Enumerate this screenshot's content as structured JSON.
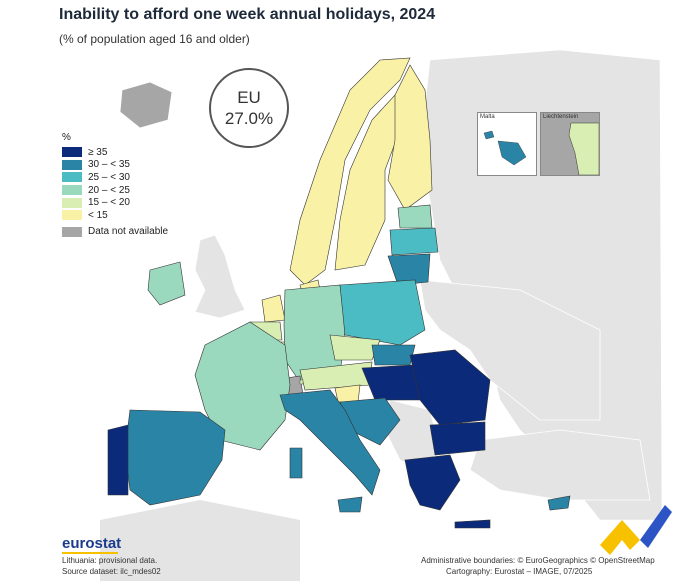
{
  "title": "Inability to afford one week annual holidays, 2024",
  "subtitle": "(% of population aged 16 and older)",
  "eu_label": "EU",
  "eu_value": "27.0%",
  "legend": {
    "unit": "%",
    "items": [
      {
        "label": "≥ 35",
        "color": "#0b2a7a"
      },
      {
        "label": "30 – < 35",
        "color": "#2a84a6"
      },
      {
        "label": "25 – < 30",
        "color": "#4bbcc4"
      },
      {
        "label": "20 – < 25",
        "color": "#9ad9bd"
      },
      {
        "label": "15 – < 20",
        "color": "#d8eeb3"
      },
      {
        "label": "< 15",
        "color": "#f9f1a5"
      }
    ],
    "not_available": {
      "label": "Data not available",
      "color": "#a6a6a6"
    }
  },
  "insets": {
    "malta": "Malta",
    "liechtenstein": "Liechtenstein"
  },
  "footer": {
    "logo": "eurostat",
    "note": "Lithuania: provisional data.",
    "source": "Source dataset: ilc_mdes02",
    "boundaries": "Administrative boundaries: © EuroGeographics © OpenStreetMap",
    "cartography": "Cartography: Eurostat – IMAGE, 07/2025"
  },
  "countries": [
    {
      "name": "Portugal",
      "class": "≥ 35"
    },
    {
      "name": "Spain",
      "class": "30 – < 35"
    },
    {
      "name": "France",
      "class": "20 – < 25"
    },
    {
      "name": "Ireland",
      "class": "20 – < 25"
    },
    {
      "name": "Belgium",
      "class": "15 – < 20"
    },
    {
      "name": "Netherlands",
      "class": "< 15"
    },
    {
      "name": "Luxembourg",
      "class": "< 15"
    },
    {
      "name": "Germany",
      "class": "20 – < 25"
    },
    {
      "name": "Denmark",
      "class": "< 15"
    },
    {
      "name": "Sweden",
      "class": "< 15"
    },
    {
      "name": "Finland",
      "class": "< 15"
    },
    {
      "name": "Norway",
      "class": "< 15"
    },
    {
      "name": "Estonia",
      "class": "20 – < 25"
    },
    {
      "name": "Latvia",
      "class": "25 – < 30"
    },
    {
      "name": "Lithuania",
      "class": "30 – < 35"
    },
    {
      "name": "Poland",
      "class": "25 – < 30"
    },
    {
      "name": "Czechia",
      "class": "15 – < 20"
    },
    {
      "name": "Austria",
      "class": "15 – < 20"
    },
    {
      "name": "Slovenia",
      "class": "< 15"
    },
    {
      "name": "Slovakia",
      "class": "30 – < 35"
    },
    {
      "name": "Hungary",
      "class": "≥ 35"
    },
    {
      "name": "Romania",
      "class": "≥ 35"
    },
    {
      "name": "Bulgaria",
      "class": "≥ 35"
    },
    {
      "name": "Greece",
      "class": "≥ 35"
    },
    {
      "name": "Cyprus",
      "class": "30 – < 35"
    },
    {
      "name": "Croatia",
      "class": "30 – < 35"
    },
    {
      "name": "Italy",
      "class": "30 – < 35"
    },
    {
      "name": "Malta",
      "class": "30 – < 35"
    },
    {
      "name": "Liechtenstein",
      "class": "15 – < 20"
    },
    {
      "name": "Switzerland",
      "class": "Data not available"
    },
    {
      "name": "Iceland",
      "class": "Data not available"
    }
  ]
}
